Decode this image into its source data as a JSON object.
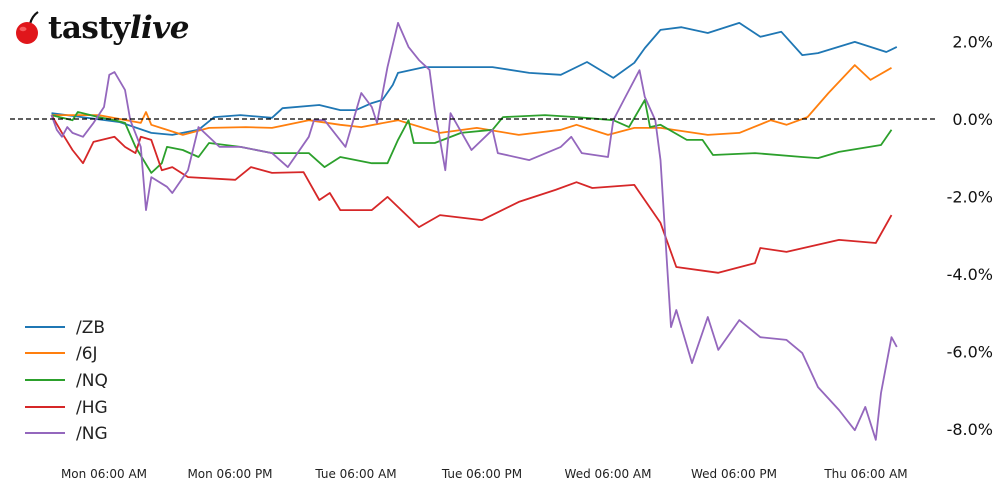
{
  "logo": {
    "text_regular": "tasty",
    "text_italic": "live"
  },
  "chart_data": {
    "type": "line",
    "title": "",
    "xlabel": "",
    "ylabel": "",
    "ylim": [
      -8.5,
      2.6
    ],
    "y_ticks": [
      "2.0%",
      "0.0%",
      "-2.0%",
      "-4.0%",
      "-6.0%",
      "-8.0%"
    ],
    "y_tick_values": [
      2,
      0,
      -2,
      -4,
      -6,
      -8
    ],
    "x_ticks": [
      "Mon 06:00 AM",
      "Mon 06:00 PM",
      "Tue 06:00 AM",
      "Tue 06:00 PM",
      "Wed 06:00 AM",
      "Wed 06:00 PM",
      "Thu 06:00 AM"
    ],
    "x_tick_values": [
      "Mon 06:00",
      "Mon 18:00",
      "Tue 06:00",
      "Tue 18:00",
      "Wed 06:00",
      "Wed 18:00",
      "Thu 06:00"
    ],
    "reference_line": {
      "y": 0,
      "style": "dashed",
      "color": "#000000"
    },
    "grid": false,
    "legend_position": "bottom-left",
    "y_axis_side": "right",
    "series": [
      {
        "name": "/ZB",
        "color": "#1f77b4",
        "points": [
          [
            "Mon 01:00",
            0.15
          ],
          [
            "Mon 03:00",
            0.08
          ],
          [
            "Mon 07:30",
            -0.08
          ],
          [
            "Mon 10:30",
            -0.36
          ],
          [
            "Mon 12:30",
            -0.41
          ],
          [
            "Mon 15:00",
            -0.28
          ],
          [
            "Mon 16:30",
            0.05
          ],
          [
            "Mon 19:00",
            0.1
          ],
          [
            "Mon 22:00",
            0.03
          ],
          [
            "Mon 23:00",
            0.28
          ],
          [
            "Tue 02:30",
            0.36
          ],
          [
            "Tue 04:30",
            0.23
          ],
          [
            "Tue 06:00",
            0.23
          ],
          [
            "Tue 07:30",
            0.41
          ],
          [
            "Tue 08:30",
            0.49
          ],
          [
            "Tue 09:30",
            0.88
          ],
          [
            "Tue 10:00",
            1.19
          ],
          [
            "Tue 12:30",
            1.34
          ],
          [
            "Tue 16:00",
            1.34
          ],
          [
            "Tue 19:00",
            1.34
          ],
          [
            "Tue 22:30",
            1.19
          ],
          [
            "Wed 01:30",
            1.14
          ],
          [
            "Wed 04:00",
            1.47
          ],
          [
            "Wed 06:30",
            1.06
          ],
          [
            "Wed 08:30",
            1.45
          ],
          [
            "Wed 09:30",
            1.83
          ],
          [
            "Wed 11:00",
            2.3
          ],
          [
            "Wed 13:00",
            2.37
          ],
          [
            "Wed 15:30",
            2.22
          ],
          [
            "Wed 18:30",
            2.48
          ],
          [
            "Wed 20:30",
            2.12
          ],
          [
            "Wed 22:30",
            2.25
          ],
          [
            "Thu 00:30",
            1.65
          ],
          [
            "Thu 02:00",
            1.7
          ],
          [
            "Thu 05:30",
            1.99
          ],
          [
            "Thu 08:30",
            1.73
          ],
          [
            "Thu 09:30",
            1.86
          ]
        ]
      },
      {
        "name": "/6J",
        "color": "#ff7f0e",
        "points": [
          [
            "Mon 01:00",
            0.1
          ],
          [
            "Mon 05:30",
            0.1
          ],
          [
            "Mon 09:30",
            -0.1
          ],
          [
            "Mon 10:00",
            0.18
          ],
          [
            "Mon 10:30",
            -0.15
          ],
          [
            "Mon 13:30",
            -0.41
          ],
          [
            "Mon 16:00",
            -0.23
          ],
          [
            "Mon 19:30",
            -0.21
          ],
          [
            "Mon 22:00",
            -0.23
          ],
          [
            "Tue 01:30",
            -0.03
          ],
          [
            "Tue 04:30",
            -0.15
          ],
          [
            "Tue 06:30",
            -0.21
          ],
          [
            "Tue 10:00",
            -0.03
          ],
          [
            "Tue 14:00",
            -0.36
          ],
          [
            "Tue 17:30",
            -0.23
          ],
          [
            "Tue 21:30",
            -0.41
          ],
          [
            "Wed 01:30",
            -0.28
          ],
          [
            "Wed 03:00",
            -0.15
          ],
          [
            "Wed 06:00",
            -0.41
          ],
          [
            "Wed 08:30",
            -0.23
          ],
          [
            "Wed 11:00",
            -0.23
          ],
          [
            "Wed 15:30",
            -0.41
          ],
          [
            "Wed 18:30",
            -0.36
          ],
          [
            "Wed 21:30",
            -0.03
          ],
          [
            "Wed 23:00",
            -0.15
          ],
          [
            "Thu 01:00",
            0.05
          ],
          [
            "Thu 03:00",
            0.67
          ],
          [
            "Thu 05:30",
            1.39
          ],
          [
            "Thu 07:00",
            1.01
          ],
          [
            "Thu 09:00",
            1.32
          ]
        ]
      },
      {
        "name": "/NQ",
        "color": "#2ca02c",
        "points": [
          [
            "Mon 01:00",
            0.1
          ],
          [
            "Mon 03:00",
            -0.03
          ],
          [
            "Mon 03:30",
            0.18
          ],
          [
            "Mon 05:30",
            0.05
          ],
          [
            "Mon 07:00",
            -0.03
          ],
          [
            "Mon 08:00",
            -0.1
          ],
          [
            "Mon 09:00",
            -0.72
          ],
          [
            "Mon 10:30",
            -1.39
          ],
          [
            "Mon 11:30",
            -1.14
          ],
          [
            "Mon 12:00",
            -0.72
          ],
          [
            "Mon 13:30",
            -0.8
          ],
          [
            "Mon 15:00",
            -0.98
          ],
          [
            "Mon 16:00",
            -0.62
          ],
          [
            "Mon 19:00",
            -0.72
          ],
          [
            "Mon 22:00",
            -0.88
          ],
          [
            "Tue 01:30",
            -0.88
          ],
          [
            "Tue 03:00",
            -1.24
          ],
          [
            "Tue 04:30",
            -0.98
          ],
          [
            "Tue 07:30",
            -1.14
          ],
          [
            "Tue 09:00",
            -1.14
          ],
          [
            "Tue 10:00",
            -0.54
          ],
          [
            "Tue 11:00",
            -0.03
          ],
          [
            "Tue 11:30",
            -0.62
          ],
          [
            "Tue 13:30",
            -0.62
          ],
          [
            "Tue 16:00",
            -0.36
          ],
          [
            "Tue 19:00",
            -0.28
          ],
          [
            "Tue 20:00",
            0.05
          ],
          [
            "Wed 00:00",
            0.1
          ],
          [
            "Wed 03:00",
            0.05
          ],
          [
            "Wed 06:30",
            -0.03
          ],
          [
            "Wed 08:00",
            -0.21
          ],
          [
            "Wed 09:30",
            0.49
          ],
          [
            "Wed 10:00",
            -0.21
          ],
          [
            "Wed 11:00",
            -0.15
          ],
          [
            "Wed 13:30",
            -0.54
          ],
          [
            "Wed 15:00",
            -0.54
          ],
          [
            "Wed 16:00",
            -0.93
          ],
          [
            "Wed 20:00",
            -0.88
          ],
          [
            "Thu 00:30",
            -0.98
          ],
          [
            "Thu 02:00",
            -1.01
          ],
          [
            "Thu 04:00",
            -0.85
          ],
          [
            "Thu 08:00",
            -0.67
          ],
          [
            "Thu 09:00",
            -0.28
          ]
        ]
      },
      {
        "name": "/HG",
        "color": "#d62728",
        "points": [
          [
            "Mon 01:00",
            0.1
          ],
          [
            "Mon 02:00",
            -0.36
          ],
          [
            "Mon 03:00",
            -0.8
          ],
          [
            "Mon 04:00",
            -1.14
          ],
          [
            "Mon 05:00",
            -0.59
          ],
          [
            "Mon 07:00",
            -0.46
          ],
          [
            "Mon 08:00",
            -0.72
          ],
          [
            "Mon 09:00",
            -0.88
          ],
          [
            "Mon 09:30",
            -0.46
          ],
          [
            "Mon 10:30",
            -0.54
          ],
          [
            "Mon 11:30",
            -1.32
          ],
          [
            "Mon 12:30",
            -1.24
          ],
          [
            "Mon 14:00",
            -1.5
          ],
          [
            "Mon 18:30",
            -1.57
          ],
          [
            "Mon 20:00",
            -1.24
          ],
          [
            "Mon 22:00",
            -1.39
          ],
          [
            "Tue 01:00",
            -1.37
          ],
          [
            "Tue 02:30",
            -2.09
          ],
          [
            "Tue 03:30",
            -1.91
          ],
          [
            "Tue 04:30",
            -2.35
          ],
          [
            "Tue 07:30",
            -2.35
          ],
          [
            "Tue 09:00",
            -2.01
          ],
          [
            "Tue 12:00",
            -2.79
          ],
          [
            "Tue 14:00",
            -2.48
          ],
          [
            "Tue 18:00",
            -2.61
          ],
          [
            "Tue 21:30",
            -2.14
          ],
          [
            "Wed 01:00",
            -1.83
          ],
          [
            "Wed 03:00",
            -1.63
          ],
          [
            "Wed 04:30",
            -1.78
          ],
          [
            "Wed 08:30",
            -1.7
          ],
          [
            "Wed 11:00",
            -2.68
          ],
          [
            "Wed 12:30",
            -3.82
          ],
          [
            "Wed 16:30",
            -3.97
          ],
          [
            "Wed 20:00",
            -3.72
          ],
          [
            "Wed 20:30",
            -3.33
          ],
          [
            "Wed 23:00",
            -3.43
          ],
          [
            "Thu 04:00",
            -3.12
          ],
          [
            "Thu 07:30",
            -3.2
          ],
          [
            "Thu 09:00",
            -2.48
          ]
        ]
      },
      {
        "name": "/NG",
        "color": "#9467bd",
        "points": [
          [
            "Mon 01:00",
            0.1
          ],
          [
            "Mon 01:30",
            -0.28
          ],
          [
            "Mon 02:00",
            -0.46
          ],
          [
            "Mon 02:30",
            -0.21
          ],
          [
            "Mon 03:00",
            -0.36
          ],
          [
            "Mon 04:00",
            -0.46
          ],
          [
            "Mon 05:00",
            -0.1
          ],
          [
            "Mon 06:00",
            0.31
          ],
          [
            "Mon 06:30",
            1.14
          ],
          [
            "Mon 07:00",
            1.21
          ],
          [
            "Mon 08:00",
            0.75
          ],
          [
            "Mon 08:30",
            -0.03
          ],
          [
            "Mon 09:30",
            -0.72
          ],
          [
            "Mon 10:00",
            -2.35
          ],
          [
            "Mon 10:30",
            -1.5
          ],
          [
            "Mon 12:00",
            -1.75
          ],
          [
            "Mon 12:30",
            -1.91
          ],
          [
            "Mon 14:00",
            -1.32
          ],
          [
            "Mon 15:00",
            -0.21
          ],
          [
            "Mon 17:00",
            -0.72
          ],
          [
            "Mon 19:00",
            -0.72
          ],
          [
            "Mon 22:00",
            -0.88
          ],
          [
            "Mon 23:30",
            -1.24
          ],
          [
            "Tue 01:30",
            -0.46
          ],
          [
            "Tue 02:00",
            -0.03
          ],
          [
            "Tue 03:00",
            -0.03
          ],
          [
            "Tue 05:00",
            -0.72
          ],
          [
            "Tue 06:30",
            0.67
          ],
          [
            "Tue 07:30",
            0.31
          ],
          [
            "Tue 08:00",
            -0.1
          ],
          [
            "Tue 09:00",
            1.34
          ],
          [
            "Tue 10:00",
            2.48
          ],
          [
            "Tue 11:00",
            1.86
          ],
          [
            "Tue 12:00",
            1.52
          ],
          [
            "Tue 13:00",
            1.27
          ],
          [
            "Tue 13:30",
            0.23
          ],
          [
            "Tue 14:30",
            -1.32
          ],
          [
            "Tue 15:00",
            0.15
          ],
          [
            "Tue 17:00",
            -0.8
          ],
          [
            "Tue 19:00",
            -0.28
          ],
          [
            "Tue 19:30",
            -0.88
          ],
          [
            "Tue 22:30",
            -1.06
          ],
          [
            "Wed 01:30",
            -0.72
          ],
          [
            "Wed 02:30",
            -0.46
          ],
          [
            "Wed 03:30",
            -0.88
          ],
          [
            "Wed 06:00",
            -0.98
          ],
          [
            "Wed 06:30",
            -0.03
          ],
          [
            "Wed 07:30",
            0.49
          ],
          [
            "Wed 09:00",
            1.26
          ],
          [
            "Wed 09:30",
            0.57
          ],
          [
            "Wed 10:30",
            -0.03
          ],
          [
            "Wed 11:00",
            -1.06
          ],
          [
            "Wed 12:00",
            -5.37
          ],
          [
            "Wed 12:30",
            -4.93
          ],
          [
            "Wed 14:00",
            -6.3
          ],
          [
            "Wed 15:30",
            -5.11
          ],
          [
            "Wed 16:30",
            -5.96
          ],
          [
            "Wed 18:30",
            -5.19
          ],
          [
            "Wed 20:30",
            -5.63
          ],
          [
            "Wed 23:00",
            -5.7
          ],
          [
            "Thu 00:30",
            -6.04
          ],
          [
            "Thu 02:00",
            -6.92
          ],
          [
            "Thu 04:00",
            -7.51
          ],
          [
            "Thu 05:30",
            -8.03
          ],
          [
            "Thu 06:30",
            -7.43
          ],
          [
            "Thu 07:30",
            -8.28
          ],
          [
            "Thu 08:00",
            -7.07
          ],
          [
            "Thu 09:00",
            -5.63
          ],
          [
            "Thu 09:30",
            -5.88
          ]
        ]
      }
    ]
  }
}
